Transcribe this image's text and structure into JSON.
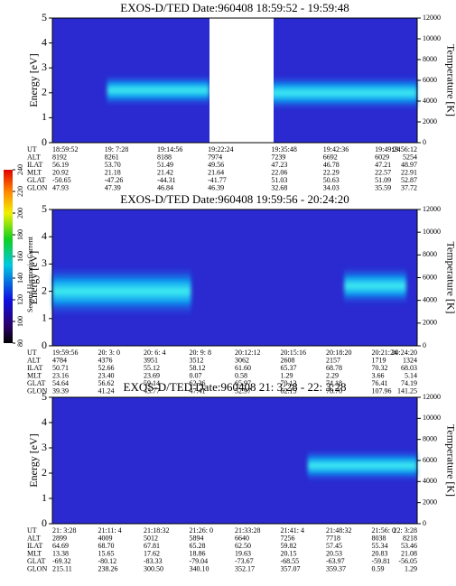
{
  "colorbar": {
    "label": "Second Harmonic Current",
    "ticks": [
      80,
      100,
      120,
      140,
      160,
      180,
      200,
      220,
      240
    ],
    "lim": [
      80,
      240
    ]
  },
  "row_labels": [
    "UT",
    "ALT",
    "ILAT",
    "MLT",
    "GLAT",
    "GLON"
  ],
  "panels": [
    {
      "title": "EXOS-D/TED   Date:960408   18:59:52 - 19:59:48",
      "ylabel": "Energy [eV]",
      "y2label": "Temperature [K]",
      "ylim": [
        0,
        5
      ],
      "yticks": [
        0,
        1,
        2,
        3,
        4,
        5
      ],
      "y2lim": [
        0,
        12000
      ],
      "y2ticks": [
        0,
        2000,
        4000,
        6000,
        8000,
        10000,
        12000
      ],
      "rows": [
        [
          "18:59:52",
          "19: 7:28",
          "19:14:56",
          "19:22:24",
          "19:35:48",
          "19:42:36",
          "19:49:24",
          "19:56:12"
        ],
        [
          "8192",
          "8261",
          "8188",
          "7974",
          "7239",
          "6692",
          "6029",
          "5254"
        ],
        [
          "56.19",
          "53.70",
          "51.49",
          "49.56",
          "47.23",
          "46.78",
          "47.21",
          "48.97"
        ],
        [
          "20.92",
          "21.18",
          "21.42",
          "21.64",
          "22.06",
          "22.29",
          "22.57",
          "22.91"
        ],
        [
          "-50.65",
          "-47.26",
          "-44.31",
          "-41.77",
          "51.03",
          "50.63",
          "51.09",
          "52.87"
        ],
        [
          "47.93",
          "47.39",
          "46.84",
          "46.39",
          "32.68",
          "34.03",
          "35.59",
          "37.72"
        ]
      ]
    },
    {
      "title": "EXOS-D/TED   Date:960408   19:59:56 - 20:24:20",
      "ylabel": "Energy [eV]",
      "y2label": "Temperature [K]",
      "ylim": [
        0,
        5
      ],
      "yticks": [
        0,
        1,
        2,
        3,
        4,
        5
      ],
      "y2lim": [
        0,
        12000
      ],
      "y2ticks": [
        0,
        2000,
        4000,
        6000,
        8000,
        10000,
        12000
      ],
      "rows": [
        [
          "19:59:56",
          "20: 3: 0",
          "20: 6: 4",
          "20: 9: 8",
          "20:12:12",
          "20:15:16",
          "20:18:20",
          "20:21:24",
          "20:24:20"
        ],
        [
          "4784",
          "4376",
          "3951",
          "3512",
          "3062",
          "2608",
          "2157",
          "1719",
          "1324"
        ],
        [
          "50.71",
          "52.66",
          "55.12",
          "58.12",
          "61.60",
          "65.37",
          "68.78",
          "70.32",
          "68.03"
        ],
        [
          "23.16",
          "23.40",
          "23.69",
          "0.07",
          "0.58",
          "1.29",
          "2.29",
          "3.66",
          "5.14"
        ],
        [
          "54.64",
          "56.62",
          "59.14",
          "62.26",
          "65.97",
          "70.13",
          "74.18",
          "76.41",
          "74.19"
        ],
        [
          "39.39",
          "41.24",
          "43.77",
          "47.41",
          "52.97",
          "62.15",
          "78.70",
          "107.96",
          "141.25"
        ]
      ]
    },
    {
      "title": "EXOS-D/TED   Date:960408   21: 3:28 - 22: 3:28",
      "ylabel": "Energy [eV]",
      "y2label": "Temperature [K]",
      "ylim": [
        0,
        5
      ],
      "yticks": [
        0,
        1,
        2,
        3,
        4,
        5
      ],
      "y2lim": [
        0,
        12000
      ],
      "y2ticks": [
        0,
        2000,
        4000,
        6000,
        8000,
        10000,
        12000
      ],
      "rows": [
        [
          "21: 3:28",
          "21:11: 4",
          "21:18:32",
          "21:26: 0",
          "21:33:28",
          "21:41: 4",
          "21:48:32",
          "21:56: 0",
          "22: 3:28"
        ],
        [
          "2899",
          "4009",
          "5012",
          "5894",
          "6640",
          "7256",
          "7718",
          "8038",
          "8218"
        ],
        [
          "64.69",
          "68.70",
          "67.81",
          "65.28",
          "62.50",
          "59.82",
          "57.45",
          "55.34",
          "53.46"
        ],
        [
          "13.38",
          "15.65",
          "17.62",
          "18.86",
          "19.63",
          "20.15",
          "20.53",
          "20.83",
          "21.08"
        ],
        [
          "-69.32",
          "-80.12",
          "-83.33",
          "-79.04",
          "-73.67",
          "-68.55",
          "-63.97",
          "-59.81",
          "-56.05"
        ],
        [
          "215.11",
          "238.26",
          "300.50",
          "340.10",
          "352.17",
          "357.07",
          "359.37",
          "0.59",
          "1.29"
        ]
      ]
    }
  ]
}
